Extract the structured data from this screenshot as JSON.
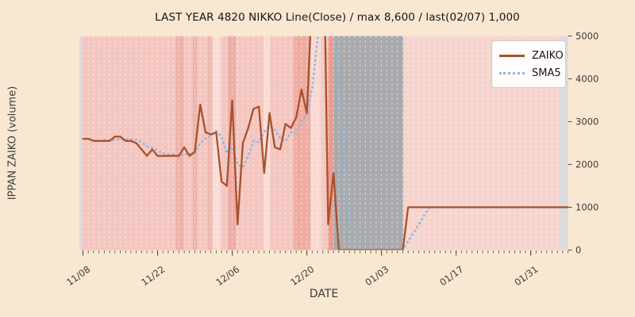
{
  "title": "LAST YEAR 4820 NIKKO Line(Close) / max 8,600 / last(02/07) 1,000",
  "axes": {
    "x_label": "DATE",
    "y_label": "IPPAN ZAIKO (volume)",
    "y_ticks": [
      0,
      1000,
      2000,
      3000,
      4000,
      5000
    ],
    "x_major_ticks": [
      {
        "day": 0,
        "label": "11/08"
      },
      {
        "day": 14,
        "label": "11/22"
      },
      {
        "day": 28,
        "label": "12/06"
      },
      {
        "day": 42,
        "label": "12/20"
      },
      {
        "day": 56,
        "label": "01/03"
      },
      {
        "day": 70,
        "label": "01/17"
      },
      {
        "day": 84,
        "label": "01/31"
      }
    ]
  },
  "legend": {
    "entries": [
      {
        "label": "ZAIKO",
        "style": "solid",
        "color": "#a8512b"
      },
      {
        "label": "SMA5",
        "style": "dotted",
        "color": "#8fb8e0"
      }
    ]
  },
  "colors": {
    "figure_bg": "#f8e8d1",
    "plot_bg": "#dcdcde",
    "grid": "rgba(255,255,255,0.6)",
    "tick_text": "#3a3a3a",
    "zaiko_line": "#a8512b",
    "sma5_line": "#8fb8e0"
  },
  "chart_data": {
    "type": "line",
    "title": "LAST YEAR 4820 NIKKO Line(Close) / max 8,600 / last(02/07) 1,000",
    "xlabel": "DATE",
    "ylabel": "IPPAN ZAIKO (volume)",
    "ylim": [
      0,
      5000
    ],
    "x_unit": "calendar day index, 0 = 11/08, 91 = 02/07",
    "x_range_days": [
      0,
      91
    ],
    "annotations": {
      "max_value": "8,600",
      "last_date": "02/07",
      "last_value": "1,000",
      "values_above_5000_clipped": true
    },
    "grid": "vertical daily white dashed lines",
    "legend_position": "upper right",
    "series": [
      {
        "name": "ZAIKO",
        "color": "#a8512b",
        "style": "solid",
        "values": [
          2600,
          2600,
          2550,
          2550,
          2550,
          2550,
          2650,
          2650,
          2550,
          2550,
          2500,
          2350,
          2200,
          2350,
          2200,
          2200,
          2200,
          2200,
          2200,
          2400,
          2200,
          2300,
          3400,
          2750,
          2700,
          2750,
          1600,
          1500,
          3500,
          600,
          2500,
          2850,
          3300,
          3350,
          1800,
          3200,
          2400,
          2350,
          2950,
          2850,
          3100,
          3750,
          3200,
          6000,
          8600,
          8600,
          600,
          1800,
          0,
          0,
          0,
          0,
          0,
          0,
          0,
          0,
          0,
          0,
          0,
          0,
          0,
          1000,
          1000,
          1000,
          1000,
          1000,
          1000,
          1000,
          1000,
          1000,
          1000,
          1000,
          1000,
          1000,
          1000,
          1000,
          1000,
          1000,
          1000,
          1000,
          1000,
          1000,
          1000,
          1000,
          1000,
          1000,
          1000,
          1000,
          1000,
          1000,
          1000,
          1000
        ]
      },
      {
        "name": "SMA5",
        "color": "#8fb8e0",
        "style": "dotted",
        "derived": "5-day simple moving average of ZAIKO",
        "window": 5
      }
    ],
    "background_bands": [
      {
        "from": -0.25,
        "to": 17.4,
        "color": "#f4c6c0"
      },
      {
        "from": 17.4,
        "to": 18.9,
        "color": "#eeb1a9"
      },
      {
        "from": 18.9,
        "to": 20.6,
        "color": "#f4c6c0"
      },
      {
        "from": 20.6,
        "to": 21.4,
        "color": "#eeb1a9"
      },
      {
        "from": 21.4,
        "to": 23.4,
        "color": "#f4c6c0"
      },
      {
        "from": 23.4,
        "to": 24.3,
        "color": "#f0b7af"
      },
      {
        "from": 24.3,
        "to": 25.8,
        "color": "#f9dcd5"
      },
      {
        "from": 25.8,
        "to": 27.2,
        "color": "#f4c6c0"
      },
      {
        "from": 27.2,
        "to": 28.7,
        "color": "#eeaca4"
      },
      {
        "from": 28.7,
        "to": 33.9,
        "color": "#f4c6c0"
      },
      {
        "from": 33.9,
        "to": 35.1,
        "color": "#f9dcd5"
      },
      {
        "from": 35.1,
        "to": 39.5,
        "color": "#f4c6c0"
      },
      {
        "from": 39.5,
        "to": 42.7,
        "color": "#efaba2"
      },
      {
        "from": 42.7,
        "to": 44.7,
        "color": "#f8d8d1"
      },
      {
        "from": 44.7,
        "to": 46.0,
        "color": "#f4c6c0"
      },
      {
        "from": 46.0,
        "to": 47.0,
        "color": "#ec9b90"
      },
      {
        "from": 47.0,
        "to": 60.1,
        "color": "#a8aaad"
      },
      {
        "from": 60.1,
        "to": 89.5,
        "color": "#f6d4ce"
      }
    ]
  }
}
